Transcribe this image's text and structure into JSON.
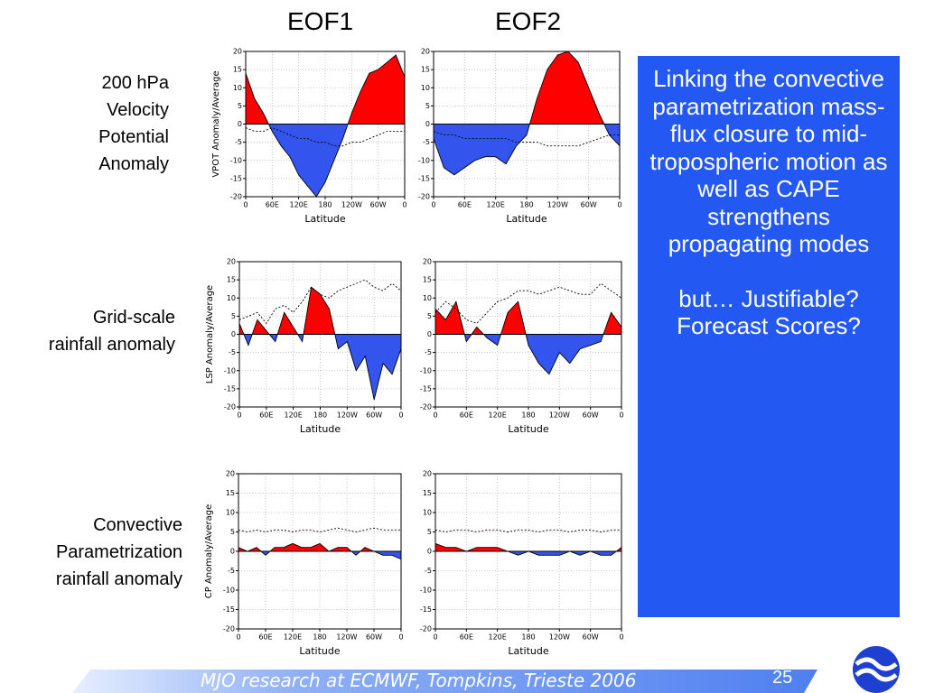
{
  "column_headers": [
    "EOF1",
    "EOF2"
  ],
  "row_labels": [
    "200 hPa\nVelocity\nPotential\nAnomaly",
    "Grid-scale\nrainfall anomaly",
    "Convective\nParametrization\nrainfall anomaly"
  ],
  "text_box": {
    "paragraphs": [
      "Linking the convective parametrization mass-flux closure to mid-tropospheric motion as well as CAPE strengthens propagating modes",
      "but… Justifiable? Forecast Scores?"
    ]
  },
  "footer": {
    "text": "MJO research at ECMWF, Tompkins, Trieste 2006",
    "page_number": 25
  },
  "chart_data": [
    {
      "type": "area",
      "ylabel": "VPOT Anomaly/Average",
      "xlabel": "Latitude",
      "x": [
        0,
        20,
        40,
        60,
        80,
        100,
        120,
        140,
        160,
        180,
        200,
        220,
        240,
        260,
        280,
        300,
        320,
        340,
        360
      ],
      "xlim": [
        0,
        360
      ],
      "xticks": [
        0,
        {
          "value": 60,
          "label": "60E"
        },
        {
          "value": 120,
          "label": "120E"
        },
        180,
        {
          "value": 240,
          "label": "120W"
        },
        {
          "value": 300,
          "label": "60W"
        },
        {
          "value": 360,
          "label": "0"
        }
      ],
      "ylim": [
        -20,
        20
      ],
      "yticks": [
        -20,
        -15,
        -10,
        -5,
        0,
        5,
        10,
        15,
        20
      ],
      "grid": true,
      "series": [
        {
          "values": [
            14,
            7,
            3,
            -2,
            -6,
            -9,
            -14,
            -17,
            -20,
            -16,
            -10,
            -4,
            3,
            9,
            14,
            15,
            17,
            19,
            13
          ],
          "positive_color": "#ff0000",
          "negative_color": "#3355ee"
        },
        {
          "values": [
            -1,
            -2,
            -2,
            -1,
            -2,
            -3,
            -4,
            -4,
            -5,
            -5,
            -6,
            -6,
            -5,
            -5,
            -4,
            -3,
            -2,
            -2,
            -2
          ],
          "color": "#000000",
          "dashed": true
        }
      ]
    },
    {
      "type": "area",
      "xlabel": "Latitude",
      "x": [
        0,
        20,
        40,
        60,
        80,
        100,
        120,
        140,
        160,
        180,
        200,
        220,
        240,
        260,
        280,
        300,
        320,
        340,
        360
      ],
      "xlim": [
        0,
        360
      ],
      "xticks": [
        0,
        {
          "value": 60,
          "label": "60E"
        },
        {
          "value": 120,
          "label": "120E"
        },
        180,
        {
          "value": 240,
          "label": "120W"
        },
        {
          "value": 300,
          "label": "60W"
        },
        {
          "value": 360,
          "label": "0"
        }
      ],
      "ylim": [
        -20,
        20
      ],
      "yticks": [
        -20,
        -15,
        -10,
        -5,
        0,
        5,
        10,
        15,
        20
      ],
      "grid": true,
      "series": [
        {
          "values": [
            -4,
            -12,
            -14,
            -12,
            -10,
            -9,
            -9,
            -11,
            -6,
            -3,
            7,
            15,
            19,
            20,
            17,
            10,
            3,
            -3,
            -6
          ],
          "positive_color": "#ff0000",
          "negative_color": "#3355ee"
        },
        {
          "values": [
            -2,
            -3,
            -3,
            -4,
            -4,
            -4,
            -4,
            -4,
            -5,
            -5,
            -5,
            -6,
            -6,
            -6,
            -6,
            -5,
            -4,
            -3,
            -3
          ],
          "color": "#000000",
          "dashed": true
        }
      ]
    },
    {
      "type": "area",
      "ylabel": "LSP Anomaly/Average",
      "xlabel": "Latitude",
      "x": [
        0,
        20,
        40,
        60,
        80,
        100,
        120,
        140,
        160,
        180,
        200,
        220,
        240,
        260,
        280,
        300,
        320,
        340,
        360
      ],
      "xlim": [
        0,
        360
      ],
      "xticks": [
        0,
        {
          "value": 60,
          "label": "60E"
        },
        {
          "value": 120,
          "label": "120E"
        },
        180,
        {
          "value": 240,
          "label": "120W"
        },
        {
          "value": 300,
          "label": "60W"
        },
        {
          "value": 360,
          "label": "0"
        }
      ],
      "ylim": [
        -20,
        20
      ],
      "yticks": [
        -20,
        -15,
        -10,
        -5,
        0,
        5,
        10,
        15,
        20
      ],
      "grid": true,
      "series": [
        {
          "values": [
            3,
            -3,
            4,
            1,
            -2,
            6,
            2,
            -2,
            13,
            11,
            7,
            -4,
            -2,
            -10,
            -6,
            -18,
            -8,
            -11,
            -4
          ],
          "positive_color": "#ff0000",
          "negative_color": "#3355ee"
        },
        {
          "values": [
            4,
            5,
            6,
            3,
            7,
            8,
            6,
            9,
            13,
            11,
            10,
            12,
            13,
            14,
            15,
            13,
            12,
            14,
            12
          ],
          "color": "#000000",
          "dashed": true
        }
      ]
    },
    {
      "type": "area",
      "xlabel": "Latitude",
      "x": [
        0,
        20,
        40,
        60,
        80,
        100,
        120,
        140,
        160,
        180,
        200,
        220,
        240,
        260,
        280,
        300,
        320,
        340,
        360
      ],
      "xlim": [
        0,
        360
      ],
      "xticks": [
        0,
        {
          "value": 60,
          "label": "60E"
        },
        {
          "value": 120,
          "label": "120E"
        },
        180,
        {
          "value": 240,
          "label": "120W"
        },
        {
          "value": 300,
          "label": "60W"
        },
        {
          "value": 360,
          "label": "0"
        }
      ],
      "ylim": [
        -20,
        20
      ],
      "yticks": [
        -20,
        -15,
        -10,
        -5,
        0,
        5,
        10,
        15,
        20
      ],
      "grid": true,
      "series": [
        {
          "values": [
            7,
            4,
            9,
            -2,
            2,
            -1,
            -3,
            6,
            9,
            -3,
            -8,
            -11,
            -5,
            -8,
            -4,
            -3,
            -2,
            6,
            2
          ],
          "positive_color": "#ff0000",
          "negative_color": "#3355ee"
        },
        {
          "values": [
            6,
            9,
            7,
            4,
            3,
            6,
            9,
            10,
            12,
            12,
            11,
            12,
            13,
            12,
            11,
            11,
            14,
            12,
            10
          ],
          "color": "#000000",
          "dashed": true
        }
      ]
    },
    {
      "type": "area",
      "ylabel": "CP Anomaly/Average",
      "xlabel": "Latitude",
      "x": [
        0,
        20,
        40,
        60,
        80,
        100,
        120,
        140,
        160,
        180,
        200,
        220,
        240,
        260,
        280,
        300,
        320,
        340,
        360
      ],
      "xlim": [
        0,
        360
      ],
      "xticks": [
        0,
        {
          "value": 60,
          "label": "60E"
        },
        {
          "value": 120,
          "label": "120E"
        },
        180,
        {
          "value": 240,
          "label": "120W"
        },
        {
          "value": 300,
          "label": "60W"
        },
        {
          "value": 360,
          "label": "0"
        }
      ],
      "ylim": [
        -20,
        20
      ],
      "yticks": [
        -20,
        -15,
        -10,
        -5,
        0,
        5,
        10,
        15,
        20
      ],
      "grid": true,
      "series": [
        {
          "values": [
            1,
            0,
            1,
            -1,
            1,
            1,
            2,
            1,
            1,
            2,
            0,
            1,
            1,
            -1,
            1,
            0,
            -1,
            -1,
            -2
          ],
          "positive_color": "#ff0000",
          "negative_color": "#3355ee"
        },
        {
          "values": [
            5.5,
            5,
            5.5,
            5,
            5.5,
            5.5,
            5,
            5.5,
            5.5,
            5,
            5.5,
            6,
            5.5,
            5,
            5.5,
            6,
            5.5,
            5.5,
            5.5
          ],
          "color": "#000000",
          "dashed": true
        }
      ]
    },
    {
      "type": "area",
      "xlabel": "Latitude",
      "x": [
        0,
        20,
        40,
        60,
        80,
        100,
        120,
        140,
        160,
        180,
        200,
        220,
        240,
        260,
        280,
        300,
        320,
        340,
        360
      ],
      "xlim": [
        0,
        360
      ],
      "xticks": [
        0,
        {
          "value": 60,
          "label": "60E"
        },
        {
          "value": 120,
          "label": "120E"
        },
        180,
        {
          "value": 240,
          "label": "120W"
        },
        {
          "value": 300,
          "label": "60W"
        },
        {
          "value": 360,
          "label": "0"
        }
      ],
      "ylim": [
        -20,
        20
      ],
      "yticks": [
        -20,
        -15,
        -10,
        -5,
        0,
        5,
        10,
        15,
        20
      ],
      "grid": true,
      "series": [
        {
          "values": [
            2,
            1,
            1,
            0,
            1,
            1,
            1,
            0,
            -1,
            0,
            -1,
            -1,
            -1,
            0,
            -1,
            0,
            -1,
            -1,
            1
          ],
          "positive_color": "#ff0000",
          "negative_color": "#3355ee"
        },
        {
          "values": [
            5.5,
            5,
            5.5,
            5.5,
            5,
            5.5,
            5.5,
            5,
            5.5,
            5.5,
            5,
            5.5,
            5.5,
            5,
            5.5,
            5.5,
            5,
            5.5,
            5.5
          ],
          "color": "#000000",
          "dashed": true
        }
      ]
    }
  ]
}
